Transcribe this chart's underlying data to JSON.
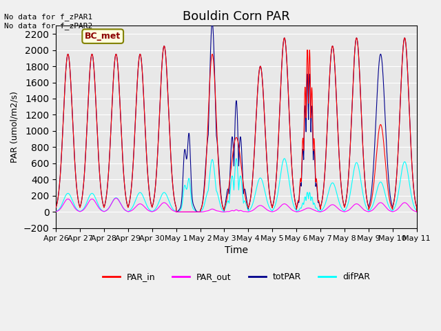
{
  "title": "Bouldin Corn PAR",
  "xlabel": "Time",
  "ylabel": "PAR (umol/m2/s)",
  "ylim": [
    -200,
    2300
  ],
  "yticks": [
    -200,
    0,
    200,
    400,
    600,
    800,
    1000,
    1200,
    1400,
    1600,
    1800,
    2000,
    2200
  ],
  "bg_color": "#e8e8e8",
  "annotation_text": "No data for f_zPAR1\nNo data for f_zPAR2",
  "legend_label_box": "BC_met",
  "legend_entries": [
    "PAR_in",
    "PAR_out",
    "totPAR",
    "difPAR"
  ],
  "line_colors": {
    "PAR_in": "#ff0000",
    "PAR_out": "#ff00ff",
    "totPAR": "#00008b",
    "difPAR": "#00ffff"
  },
  "n_days": 15,
  "points_per_day": 480
}
